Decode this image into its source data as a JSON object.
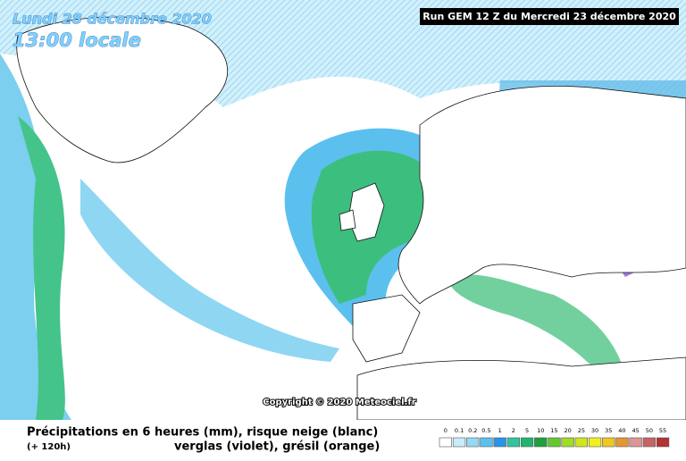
{
  "header": {
    "date": "Lundi 28 décembre 2020",
    "time": "13:00 locale",
    "run": "Run GEM 12 Z du Mercredi 23 décembre 2020"
  },
  "copyright": "Copyright © 2020 Meteociel.fr",
  "footer": {
    "line1": "Précipitations en 6 heures (mm), risque neige (blanc)",
    "lead": "(+ 120h)",
    "line2": "verglas (violet), grésil (orange)"
  },
  "legend": {
    "labels": [
      0,
      0.1,
      0.2,
      0.5,
      1,
      2,
      5,
      10,
      15,
      20,
      25,
      30,
      35,
      40,
      45,
      50,
      55
    ],
    "colors": [
      "#ffffff",
      "#c8ecfa",
      "#96d8f5",
      "#5ac0f0",
      "#2896e6",
      "#33c4a0",
      "#21b46e",
      "#1ea03c",
      "#64c832",
      "#a0dc28",
      "#d2e61e",
      "#f0f01e",
      "#f0c81e",
      "#e69632",
      "#dc9696",
      "#c86464",
      "#b43232"
    ]
  }
}
